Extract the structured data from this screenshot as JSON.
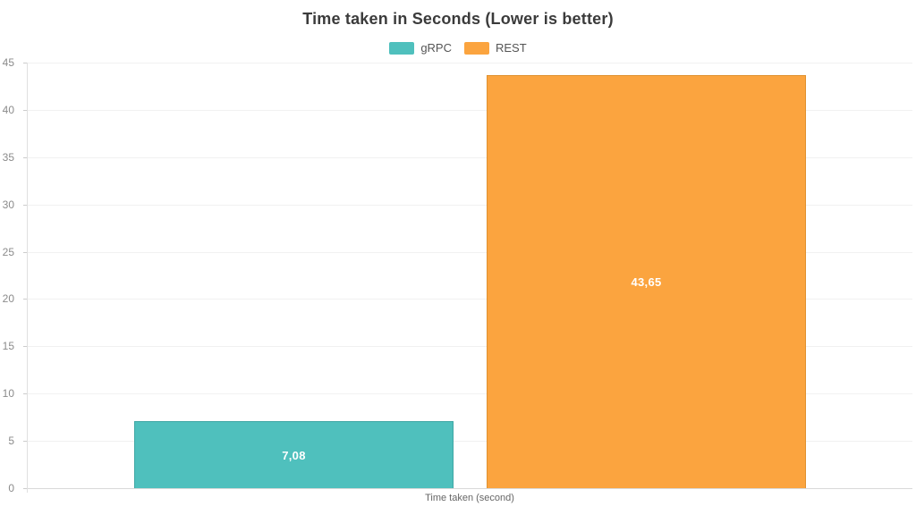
{
  "title": "Time taken in Seconds (Lower is better)",
  "legend": {
    "items": [
      {
        "label": "gRPC",
        "color": "#4FC0BD"
      },
      {
        "label": "REST",
        "color": "#FBA43F"
      }
    ]
  },
  "x_axis_title": "Time taken (second)",
  "chart_data": {
    "type": "bar",
    "title": "Time taken in Seconds (Lower is better)",
    "categories": [
      "Time taken (second)"
    ],
    "series": [
      {
        "name": "gRPC",
        "values": [
          7.08
        ],
        "value_labels": [
          "7,08"
        ],
        "color": "#4FC0BD",
        "border_color": "#3FA7A5"
      },
      {
        "name": "REST",
        "values": [
          43.65
        ],
        "value_labels": [
          "43,65"
        ],
        "color": "#FBA43F",
        "border_color": "#E0912F"
      }
    ],
    "xlabel": "Time taken (second)",
    "ylabel": "",
    "ylim": [
      0,
      45
    ],
    "yticks": [
      0,
      5,
      10,
      15,
      20,
      25,
      30,
      35,
      40,
      45
    ],
    "grid": true,
    "legend_position": "top",
    "value_label_color": "#ffffff"
  }
}
